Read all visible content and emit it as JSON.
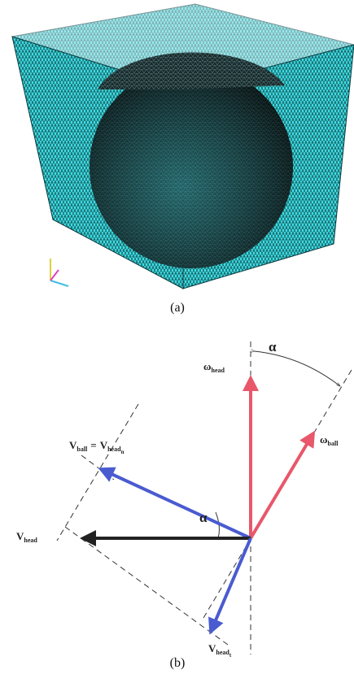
{
  "figure_a": {
    "caption": "(a)"
  },
  "figure_b": {
    "caption": "(b)",
    "alpha_top": "α",
    "alpha_mid": "α",
    "omega_head": {
      "symbol": "ω",
      "sub": "head"
    },
    "omega_ball": {
      "symbol": "ω",
      "sub": "ball"
    },
    "v_ball_eq": {
      "lhs": {
        "symbol": "V",
        "sub": "ball"
      },
      "eq": "=",
      "rhs": {
        "symbol": "V",
        "sub": "head",
        "subsub": "n"
      }
    },
    "v_head": {
      "symbol": "V",
      "sub": "head"
    },
    "v_head_t": {
      "symbol": "V",
      "sub": "head",
      "subsub": "t"
    }
  }
}
